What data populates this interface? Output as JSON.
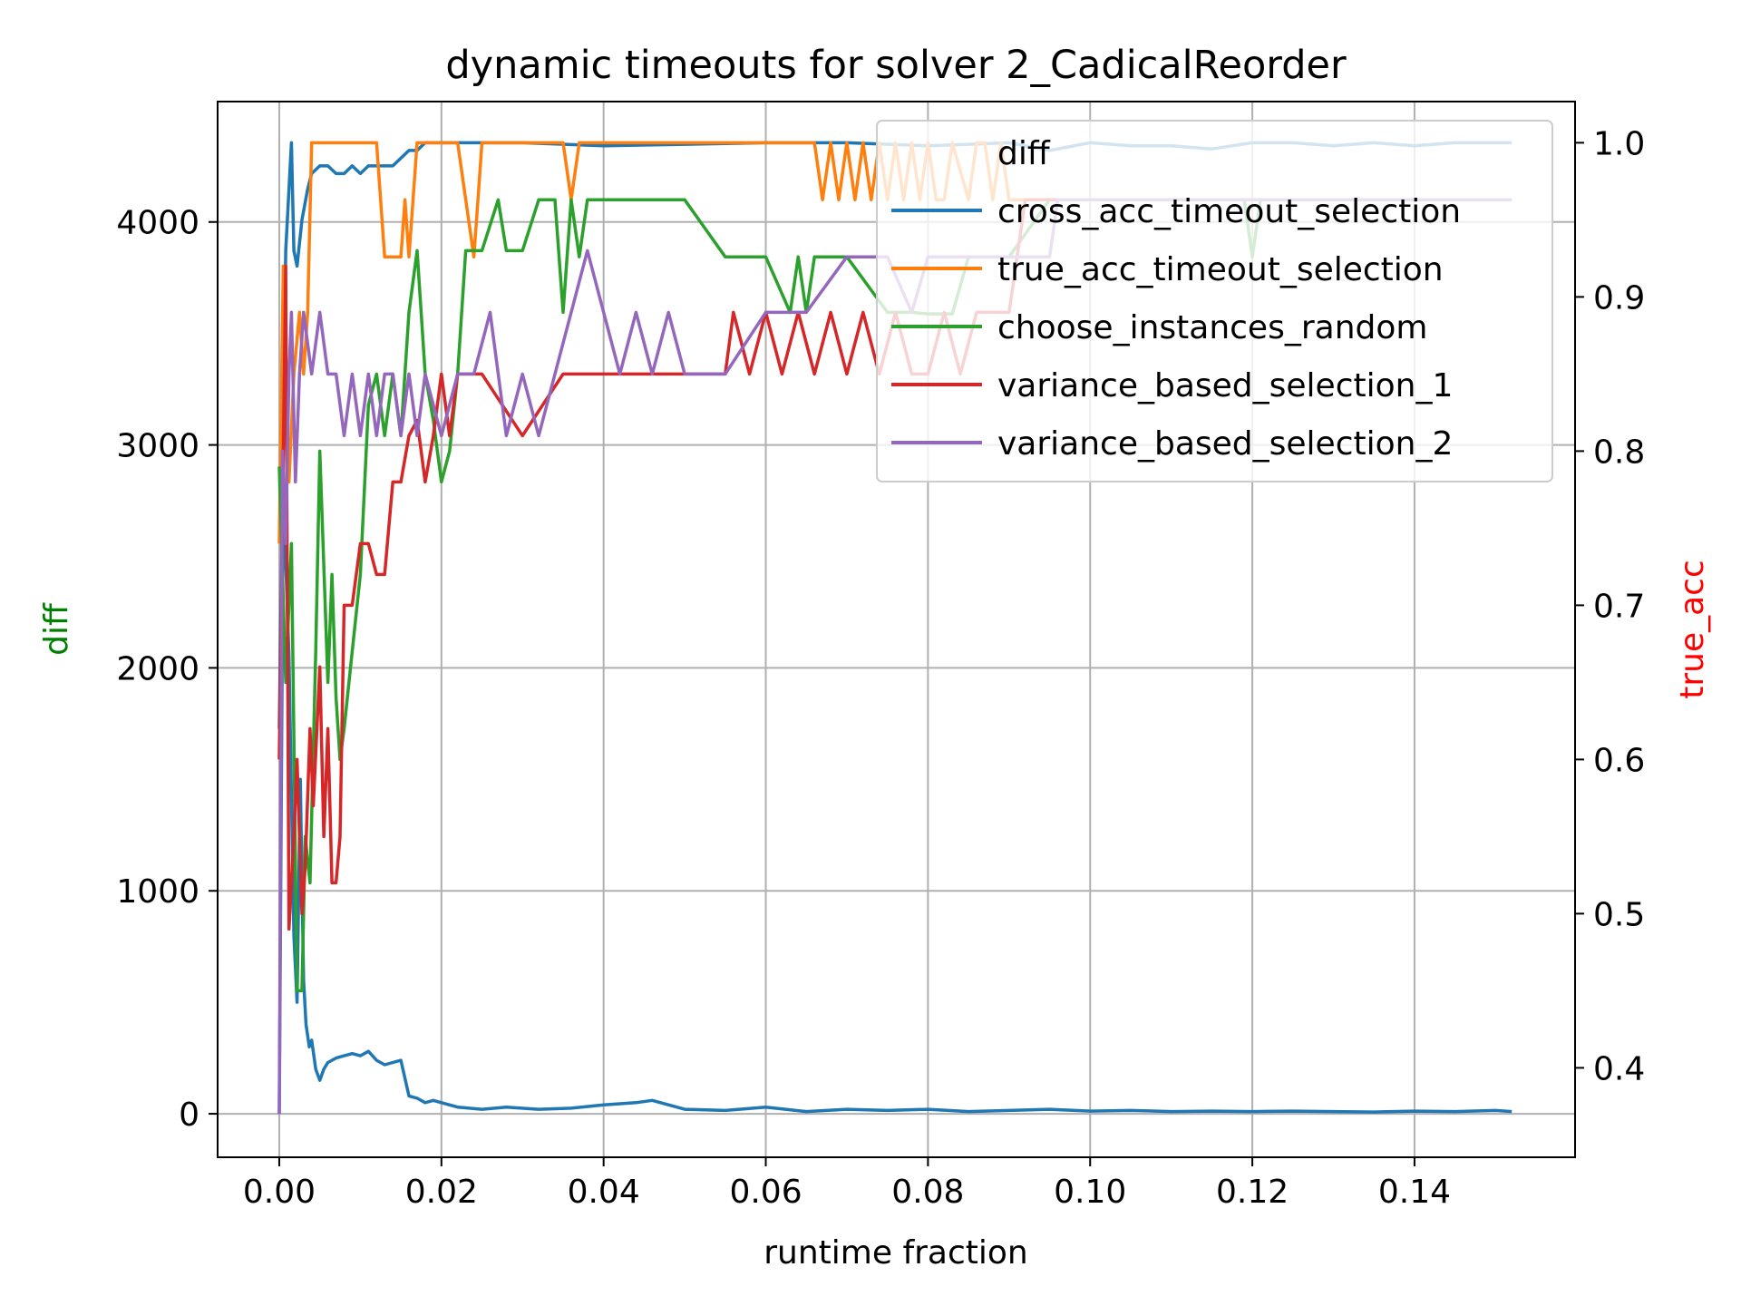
{
  "chart_data": {
    "type": "line",
    "title": "dynamic timeouts for solver 2_CadicalReorder",
    "xlabel": "runtime fraction",
    "ylabel_left": "diff",
    "ylabel_right": "true_acc",
    "colors": {
      "ylabel_left": "#008000",
      "ylabel_right": "#ff0000"
    },
    "xlim": [
      -0.0076,
      0.1598
    ],
    "ylim_left": [
      -195,
      4540
    ],
    "ylim_right": [
      0.342,
      1.0267
    ],
    "x_ticks": [
      {
        "value": 0.0,
        "label": "0.00"
      },
      {
        "value": 0.02,
        "label": "0.02"
      },
      {
        "value": 0.04,
        "label": "0.04"
      },
      {
        "value": 0.06,
        "label": "0.06"
      },
      {
        "value": 0.08,
        "label": "0.08"
      },
      {
        "value": 0.1,
        "label": "0.10"
      },
      {
        "value": 0.12,
        "label": "0.12"
      },
      {
        "value": 0.14,
        "label": "0.14"
      }
    ],
    "y_left_ticks": [
      {
        "value": 0,
        "label": "0"
      },
      {
        "value": 1000,
        "label": "1000"
      },
      {
        "value": 2000,
        "label": "2000"
      },
      {
        "value": 3000,
        "label": "3000"
      },
      {
        "value": 4000,
        "label": "4000"
      }
    ],
    "y_right_ticks": [
      {
        "value": 0.4,
        "label": "0.4"
      },
      {
        "value": 0.5,
        "label": "0.5"
      },
      {
        "value": 0.6,
        "label": "0.6"
      },
      {
        "value": 0.7,
        "label": "0.7"
      },
      {
        "value": 0.8,
        "label": "0.8"
      },
      {
        "value": 0.9,
        "label": "0.9"
      },
      {
        "value": 1.0,
        "label": "1.0"
      }
    ],
    "grid": true,
    "legend_position": "top-right",
    "legend": [
      {
        "label": "diff",
        "color": "#1f77b4",
        "show_line": false
      },
      {
        "label": "cross_acc_timeout_selection",
        "color": "#1f77b4",
        "show_line": true
      },
      {
        "label": "true_acc_timeout_selection",
        "color": "#ff7f0e",
        "show_line": true
      },
      {
        "label": "choose_instances_random",
        "color": "#2ca02c",
        "show_line": true
      },
      {
        "label": "variance_based_selection_1",
        "color": "#d62728",
        "show_line": true
      },
      {
        "label": "variance_based_selection_2",
        "color": "#9467bd",
        "show_line": true
      }
    ],
    "series": [
      {
        "name": "diff",
        "axis": "left",
        "color": "#1f77b4",
        "x": [
          0.0,
          0.0005,
          0.0012,
          0.0018,
          0.0022,
          0.0026,
          0.003,
          0.0033,
          0.0037,
          0.004,
          0.0045,
          0.005,
          0.0055,
          0.006,
          0.007,
          0.008,
          0.009,
          0.01,
          0.011,
          0.012,
          0.013,
          0.014,
          0.015,
          0.016,
          0.017,
          0.018,
          0.019,
          0.02,
          0.022,
          0.025,
          0.028,
          0.032,
          0.036,
          0.04,
          0.042,
          0.044,
          0.046,
          0.048,
          0.05,
          0.055,
          0.06,
          0.065,
          0.07,
          0.075,
          0.08,
          0.085,
          0.09,
          0.095,
          0.1,
          0.105,
          0.11,
          0.115,
          0.12,
          0.125,
          0.13,
          0.135,
          0.14,
          0.145,
          0.15,
          0.152
        ],
        "y": [
          0,
          2800,
          2050,
          800,
          500,
          1500,
          600,
          400,
          300,
          330,
          200,
          150,
          200,
          230,
          250,
          260,
          270,
          260,
          280,
          240,
          220,
          230,
          240,
          80,
          70,
          50,
          60,
          50,
          30,
          20,
          30,
          20,
          25,
          40,
          45,
          50,
          60,
          40,
          20,
          15,
          30,
          10,
          20,
          15,
          20,
          10,
          15,
          20,
          12,
          15,
          10,
          12,
          10,
          12,
          10,
          8,
          12,
          10,
          15,
          10
        ]
      },
      {
        "name": "cross_acc_timeout_selection",
        "axis": "right",
        "color": "#1f77b4",
        "x": [
          0.0,
          0.0008,
          0.0015,
          0.0018,
          0.0022,
          0.0028,
          0.0035,
          0.004,
          0.005,
          0.006,
          0.007,
          0.008,
          0.009,
          0.01,
          0.011,
          0.012,
          0.013,
          0.014,
          0.015,
          0.016,
          0.017,
          0.018,
          0.02,
          0.025,
          0.03,
          0.04,
          0.05,
          0.06,
          0.07,
          0.08,
          0.085,
          0.09,
          0.095,
          0.1,
          0.105,
          0.11,
          0.115,
          0.12,
          0.125,
          0.13,
          0.135,
          0.14,
          0.145,
          0.152
        ],
        "y": [
          0.62,
          0.93,
          1.0,
          0.93,
          0.92,
          0.95,
          0.97,
          0.98,
          0.985,
          0.985,
          0.98,
          0.98,
          0.985,
          0.98,
          0.985,
          0.985,
          0.985,
          0.985,
          0.99,
          0.995,
          0.995,
          1.0,
          1.0,
          1.0,
          1.0,
          0.998,
          0.999,
          1.0,
          1.0,
          0.998,
          0.999,
          1.0,
          0.995,
          1.0,
          0.998,
          0.998,
          0.996,
          1.0,
          1.0,
          0.998,
          1.0,
          0.998,
          1.0,
          1.0
        ]
      },
      {
        "name": "true_acc_timeout_selection",
        "axis": "right",
        "color": "#ff7f0e",
        "x": [
          0.0,
          0.0005,
          0.0012,
          0.0018,
          0.0025,
          0.003,
          0.0035,
          0.004,
          0.006,
          0.008,
          0.01,
          0.012,
          0.013,
          0.015,
          0.0155,
          0.016,
          0.0165,
          0.017,
          0.022,
          0.024,
          0.0245,
          0.025,
          0.035,
          0.036,
          0.037,
          0.066,
          0.067,
          0.068,
          0.069,
          0.07,
          0.071,
          0.072,
          0.073,
          0.074,
          0.075,
          0.076,
          0.077,
          0.078,
          0.079,
          0.08,
          0.081,
          0.082,
          0.083,
          0.085,
          0.086,
          0.087,
          0.088,
          0.089,
          0.09,
          0.091,
          0.092,
          0.1,
          0.11,
          0.12,
          0.13,
          0.14,
          0.152
        ],
        "y": [
          0.74,
          0.92,
          0.78,
          0.85,
          0.89,
          0.85,
          0.89,
          1.0,
          1.0,
          1.0,
          1.0,
          1.0,
          0.926,
          0.926,
          0.963,
          0.926,
          0.963,
          1.0,
          1.0,
          0.926,
          0.963,
          1.0,
          1.0,
          0.963,
          1.0,
          1.0,
          0.963,
          1.0,
          0.963,
          1.0,
          0.963,
          1.0,
          0.963,
          1.0,
          0.963,
          1.0,
          0.963,
          1.0,
          0.963,
          1.0,
          0.963,
          0.963,
          1.0,
          0.963,
          1.0,
          1.0,
          0.963,
          1.0,
          0.963,
          0.963,
          0.963,
          0.963,
          0.963,
          0.963,
          0.963,
          0.963,
          0.963
        ]
      },
      {
        "name": "choose_instances_random",
        "axis": "right",
        "color": "#2ca02c",
        "x": [
          0.0,
          0.0008,
          0.0015,
          0.0022,
          0.0028,
          0.0032,
          0.0038,
          0.0045,
          0.005,
          0.006,
          0.0065,
          0.007,
          0.0075,
          0.008,
          0.009,
          0.01,
          0.011,
          0.012,
          0.013,
          0.014,
          0.015,
          0.016,
          0.017,
          0.018,
          0.019,
          0.02,
          0.021,
          0.022,
          0.023,
          0.025,
          0.027,
          0.028,
          0.03,
          0.032,
          0.034,
          0.035,
          0.036,
          0.037,
          0.038,
          0.04,
          0.041,
          0.05,
          0.055,
          0.06,
          0.063,
          0.064,
          0.065,
          0.066,
          0.07,
          0.075,
          0.078,
          0.08,
          0.083,
          0.085,
          0.09,
          0.095,
          0.1,
          0.11,
          0.119,
          0.12,
          0.121,
          0.13,
          0.14,
          0.152
        ],
        "y": [
          0.79,
          0.65,
          0.74,
          0.45,
          0.45,
          0.55,
          0.52,
          0.67,
          0.8,
          0.65,
          0.72,
          0.64,
          0.6,
          0.62,
          0.67,
          0.72,
          0.83,
          0.85,
          0.81,
          0.85,
          0.81,
          0.89,
          0.93,
          0.85,
          0.82,
          0.78,
          0.8,
          0.85,
          0.93,
          0.93,
          0.963,
          0.93,
          0.93,
          0.963,
          0.963,
          0.89,
          0.963,
          0.926,
          0.963,
          0.963,
          0.963,
          0.963,
          0.926,
          0.926,
          0.89,
          0.926,
          0.89,
          0.926,
          0.926,
          0.89,
          0.89,
          0.889,
          0.889,
          0.926,
          0.926,
          0.963,
          0.963,
          0.963,
          0.963,
          0.926,
          0.963,
          0.963,
          0.963,
          0.963
        ]
      },
      {
        "name": "variance_based_selection_1",
        "axis": "right",
        "color": "#d62728",
        "x": [
          0.0,
          0.0008,
          0.0012,
          0.0018,
          0.0022,
          0.0028,
          0.0032,
          0.0038,
          0.0042,
          0.005,
          0.0055,
          0.006,
          0.0065,
          0.007,
          0.0075,
          0.008,
          0.009,
          0.01,
          0.011,
          0.012,
          0.013,
          0.014,
          0.015,
          0.016,
          0.017,
          0.018,
          0.019,
          0.02,
          0.021,
          0.022,
          0.025,
          0.03,
          0.035,
          0.04,
          0.045,
          0.05,
          0.055,
          0.056,
          0.058,
          0.06,
          0.062,
          0.064,
          0.066,
          0.068,
          0.07,
          0.072,
          0.074,
          0.076,
          0.078,
          0.08,
          0.082,
          0.084,
          0.086,
          0.088,
          0.09,
          0.092,
          0.095,
          0.1,
          0.11,
          0.12,
          0.13,
          0.14,
          0.152
        ],
        "y": [
          0.6,
          0.92,
          0.49,
          0.55,
          0.6,
          0.5,
          0.53,
          0.62,
          0.57,
          0.66,
          0.55,
          0.62,
          0.52,
          0.52,
          0.55,
          0.7,
          0.7,
          0.74,
          0.74,
          0.72,
          0.72,
          0.78,
          0.78,
          0.81,
          0.82,
          0.78,
          0.81,
          0.85,
          0.81,
          0.85,
          0.85,
          0.81,
          0.85,
          0.85,
          0.85,
          0.85,
          0.85,
          0.89,
          0.85,
          0.89,
          0.85,
          0.89,
          0.85,
          0.89,
          0.85,
          0.89,
          0.85,
          0.89,
          0.85,
          0.85,
          0.89,
          0.85,
          0.89,
          0.89,
          0.89,
          0.963,
          0.963,
          0.963,
          0.963,
          0.963,
          0.963,
          0.963,
          0.963
        ]
      },
      {
        "name": "variance_based_selection_2",
        "axis": "right",
        "color": "#9467bd",
        "x": [
          0.0,
          0.0004,
          0.0008,
          0.0012,
          0.0015,
          0.002,
          0.0025,
          0.003,
          0.004,
          0.005,
          0.006,
          0.007,
          0.008,
          0.009,
          0.01,
          0.011,
          0.012,
          0.013,
          0.014,
          0.015,
          0.016,
          0.017,
          0.018,
          0.02,
          0.022,
          0.024,
          0.026,
          0.028,
          0.03,
          0.032,
          0.034,
          0.036,
          0.038,
          0.04,
          0.042,
          0.044,
          0.046,
          0.048,
          0.05,
          0.055,
          0.06,
          0.065,
          0.07,
          0.075,
          0.078,
          0.08,
          0.085,
          0.09,
          0.095,
          0.096,
          0.1,
          0.11,
          0.12,
          0.13,
          0.14,
          0.152
        ],
        "y": [
          0.37,
          0.8,
          0.74,
          0.85,
          0.89,
          0.78,
          0.85,
          0.89,
          0.85,
          0.89,
          0.85,
          0.85,
          0.81,
          0.85,
          0.81,
          0.85,
          0.81,
          0.85,
          0.85,
          0.81,
          0.85,
          0.81,
          0.85,
          0.81,
          0.85,
          0.85,
          0.89,
          0.81,
          0.85,
          0.81,
          0.85,
          0.89,
          0.93,
          0.89,
          0.85,
          0.89,
          0.85,
          0.89,
          0.85,
          0.85,
          0.89,
          0.89,
          0.926,
          0.926,
          0.89,
          0.926,
          0.926,
          0.926,
          0.926,
          0.963,
          0.963,
          0.963,
          0.963,
          0.963,
          0.963,
          0.963
        ]
      }
    ]
  }
}
